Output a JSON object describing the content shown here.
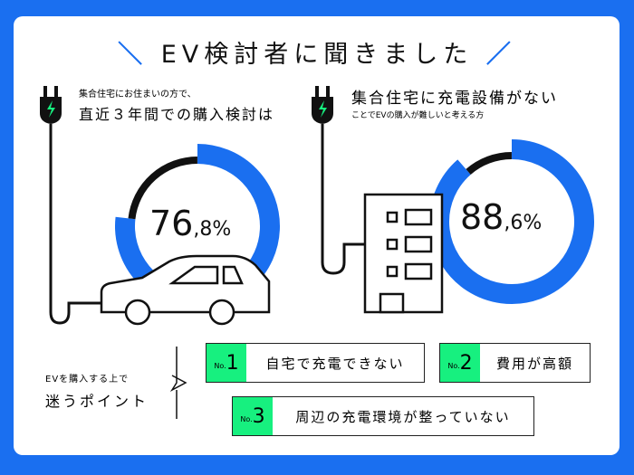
{
  "title": "EV検討者に聞きました",
  "colors": {
    "accent": "#1a6ff0",
    "green": "#17f07f",
    "dark": "#111111"
  },
  "left": {
    "sub": "集合住宅にお住まいの方で、",
    "main": "直近３年間での購入検討は",
    "value": "76",
    "decimal": ",8%"
  },
  "right": {
    "main": "集合住宅に充電設備がない",
    "sub": "ことでEVの購入が難しいと考える方",
    "value": "88",
    "decimal": ",6%"
  },
  "points": {
    "sub": "EVを購入する上で",
    "main": "迷うポイント",
    "no_label": "No.",
    "items": [
      {
        "rank": "1",
        "text": "自宅で充電できない"
      },
      {
        "rank": "2",
        "text": "費用が高額"
      },
      {
        "rank": "3",
        "text": "周辺の充電環境が整っていない"
      }
    ]
  },
  "chart_data": [
    {
      "type": "pie",
      "style": "donut",
      "values": [
        76.8,
        23.2
      ],
      "label": "76,8%"
    },
    {
      "type": "pie",
      "style": "donut",
      "values": [
        88.6,
        11.4
      ],
      "label": "88,6%"
    }
  ]
}
